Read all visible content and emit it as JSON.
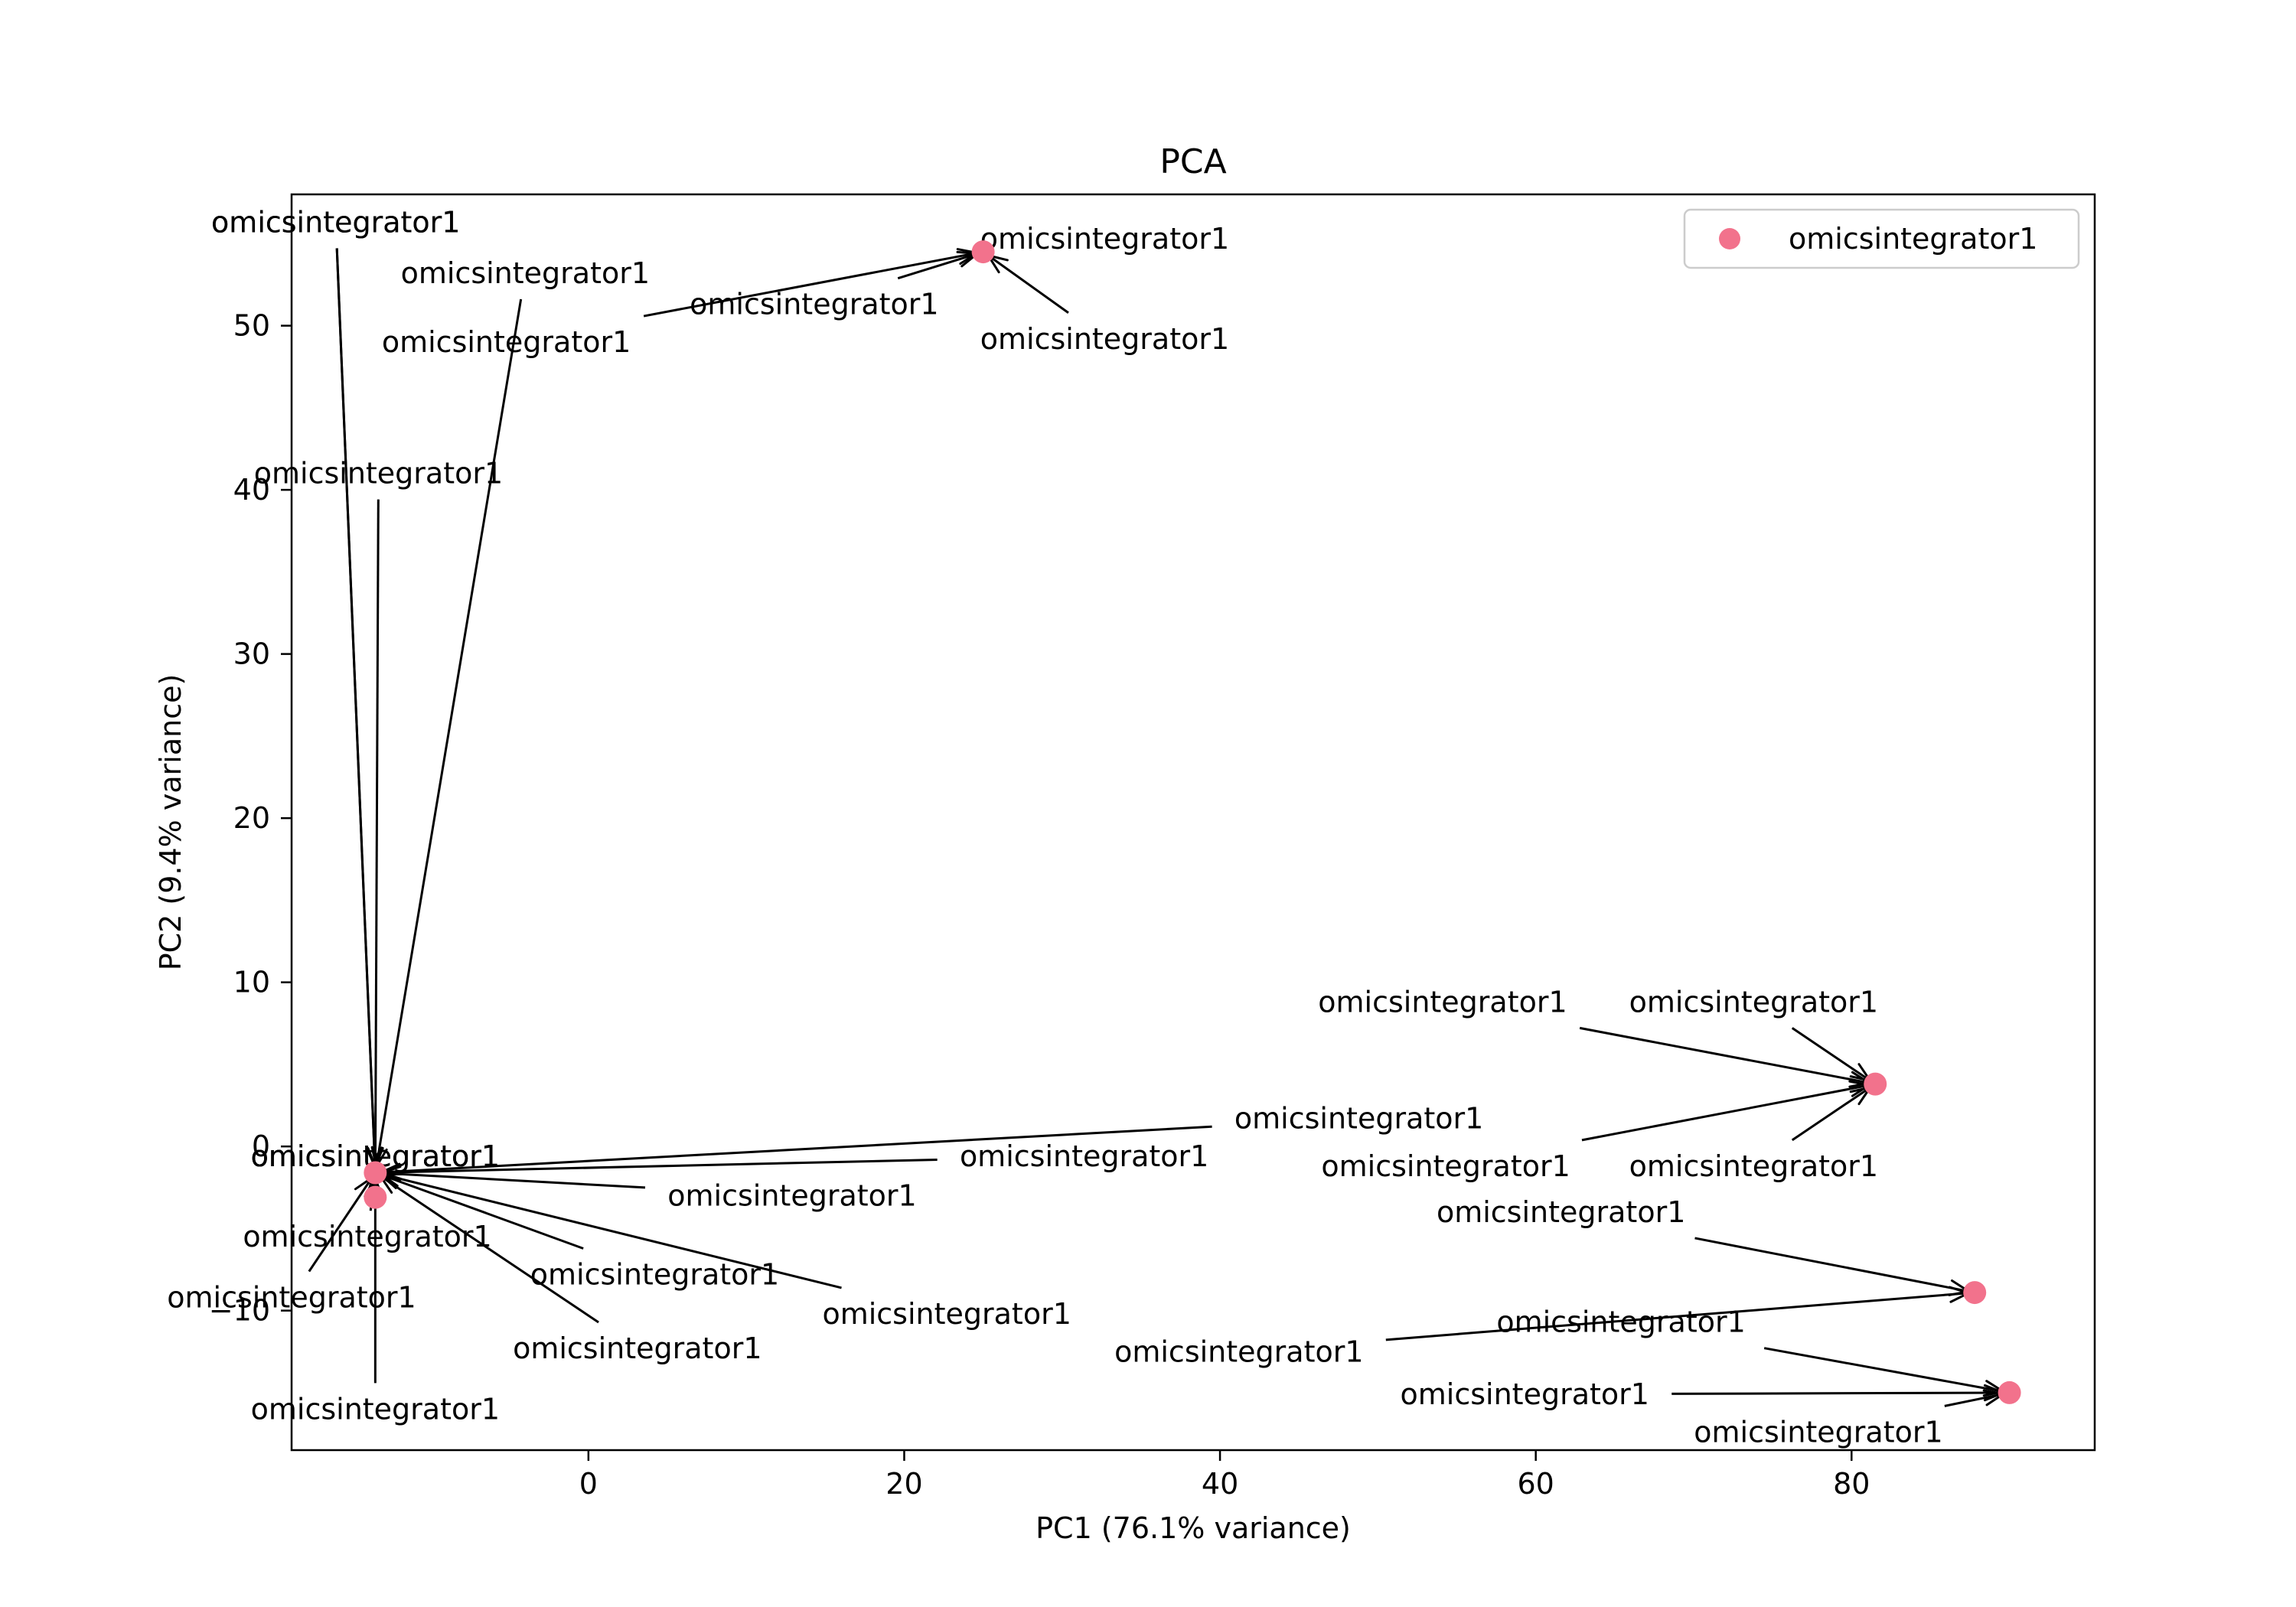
{
  "chart_data": {
    "type": "scatter",
    "title": "PCA",
    "xlabel": "PC1 (76.1% variance)",
    "ylabel": "PC2 (9.4% variance)",
    "xlim": [
      -18.8,
      95.4
    ],
    "ylim": [
      -18.5,
      58.0
    ],
    "xticks": [
      0,
      20,
      40,
      60,
      80
    ],
    "yticks": [
      -10,
      0,
      10,
      20,
      30,
      40,
      50
    ],
    "ytick_labels": [
      "−10",
      "0",
      "10",
      "20",
      "30",
      "40",
      "50"
    ],
    "grid": false,
    "legend_position": "upper right",
    "marker_color": "#f2728c",
    "series": [
      {
        "name": "omicsintegrator1",
        "points": [
          {
            "x": 25.0,
            "y": 54.5
          },
          {
            "x": -13.5,
            "y": -1.6
          },
          {
            "x": -13.5,
            "y": -3.1
          },
          {
            "x": 81.5,
            "y": 3.8
          },
          {
            "x": 87.8,
            "y": -8.9
          },
          {
            "x": 90.0,
            "y": -15.0
          }
        ]
      }
    ],
    "annotations": [
      {
        "text": "omicsintegrator1",
        "text_x": 32.7,
        "text_y": 55.3,
        "point_x": 25.0,
        "point_y": 54.5
      },
      {
        "text": "omicsintegrator1",
        "text_x": 32.7,
        "text_y": 49.2,
        "point_x": 25.0,
        "point_y": 54.5
      },
      {
        "text": "omicsintegrator1",
        "text_x": 14.3,
        "text_y": 51.3,
        "point_x": 25.0,
        "point_y": 54.5
      },
      {
        "text": "omicsintegrator1",
        "text_x": -5.2,
        "text_y": 49.0,
        "point_x": 25.0,
        "point_y": 54.5
      },
      {
        "text": "omicsintegrator1",
        "text_x": -4.0,
        "text_y": 53.2,
        "point_x": -13.5,
        "point_y": -1.6
      },
      {
        "text": "omicsintegrator1",
        "text_x": -16.0,
        "text_y": 56.3,
        "point_x": -13.5,
        "point_y": -1.6
      },
      {
        "text": "omicsintegrator1",
        "text_x": -16.0,
        "text_y": 56.3,
        "point_x": -13.5,
        "point_y": -1.6
      },
      {
        "text": "omicsintegrator1",
        "text_x": -13.3,
        "text_y": 41.0,
        "point_x": -13.5,
        "point_y": -1.6
      },
      {
        "text": "omicsintegrator1",
        "text_x": 48.8,
        "text_y": 1.7,
        "point_x": -13.5,
        "point_y": -1.6
      },
      {
        "text": "omicsintegrator1",
        "text_x": 31.4,
        "text_y": -0.6,
        "point_x": -13.5,
        "point_y": -1.6
      },
      {
        "text": "omicsintegrator1",
        "text_x": 12.9,
        "text_y": -3.0,
        "point_x": -13.5,
        "point_y": -1.6
      },
      {
        "text": "omicsintegrator1",
        "text_x": -14.0,
        "text_y": -5.5,
        "point_x": -13.5,
        "point_y": -1.6
      },
      {
        "text": "omicsintegrator1",
        "text_x": 4.2,
        "text_y": -7.8,
        "point_x": -13.5,
        "point_y": -1.6
      },
      {
        "text": "omicsintegrator1",
        "text_x": 22.7,
        "text_y": -10.2,
        "point_x": -13.5,
        "point_y": -1.6
      },
      {
        "text": "omicsintegrator1",
        "text_x": -18.8,
        "text_y": -9.2,
        "point_x": -13.5,
        "point_y": -1.6
      },
      {
        "text": "omicsintegrator1",
        "text_x": 3.1,
        "text_y": -12.3,
        "point_x": -13.5,
        "point_y": -1.6
      },
      {
        "text": "omicsintegrator1",
        "text_x": -13.5,
        "text_y": -16.0,
        "point_x": -13.5,
        "point_y": -1.6
      },
      {
        "text": "omicsintegrator1",
        "text_x": -13.5,
        "text_y": -0.6,
        "point_x": -13.5,
        "point_y": -1.6
      },
      {
        "text": "omicsintegrator1",
        "text_x": -13.5,
        "text_y": -0.6,
        "point_x": -13.5,
        "point_y": -1.6
      },
      {
        "text": "omicsintegrator1",
        "text_x": -13.5,
        "text_y": -0.6,
        "point_x": -13.5,
        "point_y": -1.6
      },
      {
        "text": "omicsintegrator1",
        "text_x": 54.1,
        "text_y": 8.8,
        "point_x": 81.5,
        "point_y": 3.8
      },
      {
        "text": "omicsintegrator1",
        "text_x": 73.8,
        "text_y": 8.8,
        "point_x": 81.5,
        "point_y": 3.8
      },
      {
        "text": "omicsintegrator1",
        "text_x": 54.3,
        "text_y": -1.2,
        "point_x": 81.5,
        "point_y": 3.8
      },
      {
        "text": "omicsintegrator1",
        "text_x": 73.8,
        "text_y": -1.2,
        "point_x": 81.5,
        "point_y": 3.8
      },
      {
        "text": "omicsintegrator1",
        "text_x": 61.6,
        "text_y": -4.0,
        "point_x": 87.8,
        "point_y": -8.9
      },
      {
        "text": "omicsintegrator1",
        "text_x": 41.2,
        "text_y": -12.5,
        "point_x": 87.8,
        "point_y": -8.9
      },
      {
        "text": "omicsintegrator1",
        "text_x": 65.4,
        "text_y": -10.7,
        "point_x": 90.0,
        "point_y": -15.0
      },
      {
        "text": "omicsintegrator1",
        "text_x": 59.3,
        "text_y": -15.1,
        "point_x": 90.0,
        "point_y": -15.0
      },
      {
        "text": "omicsintegrator1",
        "text_x": 77.9,
        "text_y": -17.4,
        "point_x": 90.0,
        "point_y": -15.0
      }
    ]
  }
}
